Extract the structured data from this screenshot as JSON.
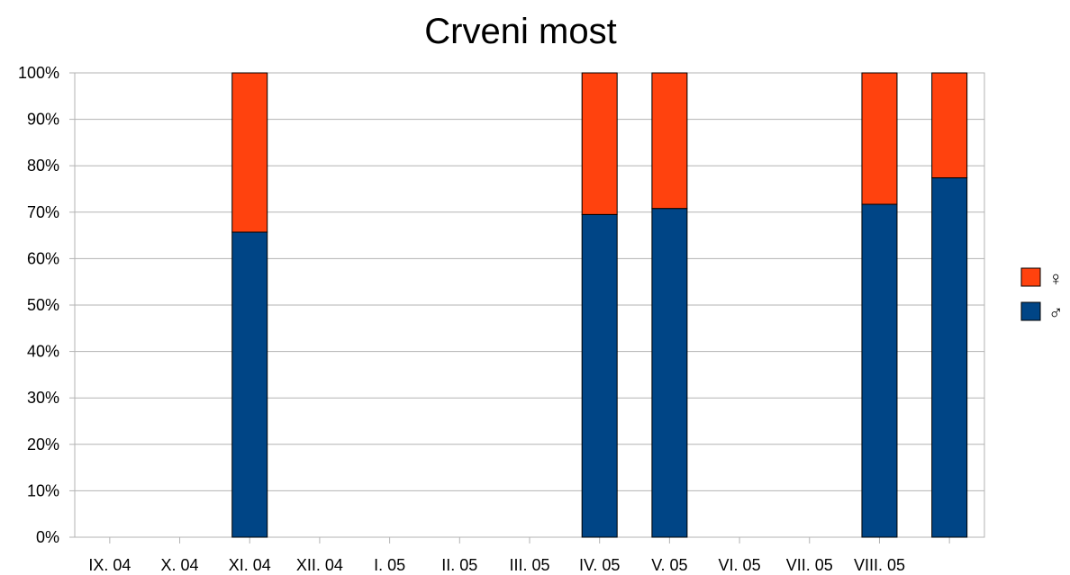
{
  "chart_data": {
    "type": "bar",
    "stacked": true,
    "percent": true,
    "title": "Crveni most",
    "categories": [
      "IX. 04",
      "X. 04",
      "XI. 04",
      "XII. 04",
      "I. 05",
      "II. 05",
      "III. 05",
      "IV. 05",
      "V. 05",
      "VI. 05",
      "VII. 05",
      "VIII. 05",
      ""
    ],
    "series": [
      {
        "name": "♂",
        "color": "#004586",
        "values": [
          null,
          null,
          65.7,
          null,
          null,
          null,
          null,
          69.5,
          70.8,
          null,
          null,
          71.7,
          77.4
        ]
      },
      {
        "name": "♀",
        "color": "#ff420e",
        "values": [
          null,
          null,
          34.3,
          null,
          null,
          null,
          null,
          30.5,
          29.2,
          null,
          null,
          28.3,
          22.6
        ]
      }
    ],
    "ylim": [
      0,
      100
    ],
    "yticks": [
      "0%",
      "10%",
      "20%",
      "30%",
      "40%",
      "50%",
      "60%",
      "70%",
      "80%",
      "90%",
      "100%"
    ],
    "grid": true,
    "legend": {
      "position": "right",
      "order": [
        "♀",
        "♂"
      ]
    }
  }
}
